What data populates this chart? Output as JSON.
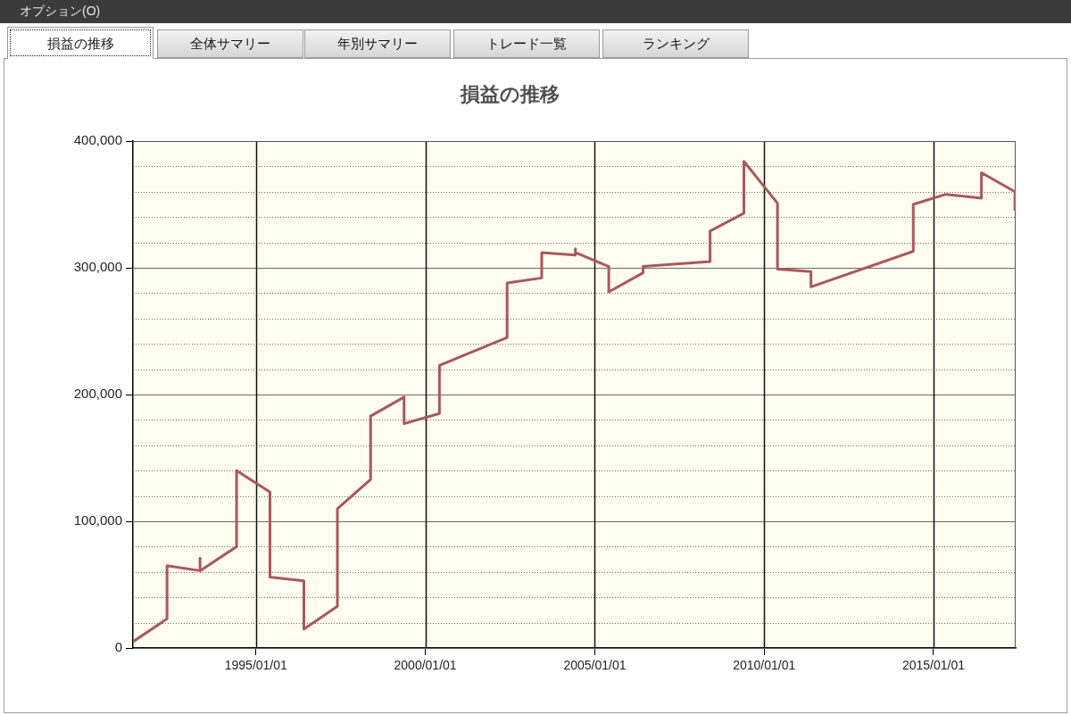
{
  "chart_data": {
    "type": "line",
    "title": "損益の推移",
    "annotations": [
      "オプション(O)",
      "損益の推移",
      "全体サマリー",
      "年別サマリー",
      "トレード一覧",
      "ランキング"
    ],
    "x": [
      "1991-05-16",
      "1992-05-17",
      "1992-05-17",
      "1993-05-08",
      "1993-05-08",
      "1993-05-08",
      "1994-06-06",
      "1994-06-06",
      "1995-06-01",
      "1995-06-01",
      "1996-06-01",
      "1996-06-01",
      "1997-05-28",
      "1997-05-28",
      "1998-05-21",
      "1998-05-21",
      "1999-05-17",
      "1999-05-17",
      "2000-06-01",
      "2000-06-01",
      "2002-06-01",
      "2002-06-01",
      "2003-06-09",
      "2003-06-09",
      "2004-06-06",
      "2004-06-06",
      "2004-06-06",
      "2005-06-01",
      "2005-06-01",
      "2006-06-06",
      "2006-06-06",
      "2008-05-28",
      "2008-05-28",
      "2009-05-28",
      "2009-05-28",
      "2010-05-25",
      "2010-05-25",
      "2011-05-21",
      "2011-05-21",
      "2014-05-28",
      "2014-05-28",
      "2015-05-14",
      "2016-06-01",
      "2016-06-01",
      "2017-05-28",
      "2017-05-28"
    ],
    "series": [
      {
        "color": "#a9585b",
        "values": [
          5000,
          23000,
          65000,
          61000,
          71000,
          61000,
          80000,
          140000,
          123000,
          56000,
          53000,
          15000,
          33000,
          110000,
          133000,
          183000,
          198000,
          177000,
          185000,
          223000,
          245000,
          288000,
          292000,
          312000,
          310000,
          315000,
          312000,
          301000,
          281000,
          296000,
          301000,
          305000,
          329000,
          343000,
          384000,
          351000,
          299000,
          297000,
          285000,
          313000,
          350000,
          358000,
          355000,
          375000,
          360000,
          346000
        ]
      }
    ],
    "xlim": [
      "1991-05-16",
      "2017-06-05"
    ],
    "xticks": [
      {
        "value": "1995-01-01",
        "label": "1995/01/01"
      },
      {
        "value": "2000-01-01",
        "label": "2000/01/01"
      },
      {
        "value": "2005-01-01",
        "label": "2005/01/01"
      },
      {
        "value": "2010-01-01",
        "label": "2010/01/01"
      },
      {
        "value": "2015-01-01",
        "label": "2015/01/01"
      }
    ],
    "ylim": [
      0,
      400000
    ],
    "yticks": [
      0,
      {
        "value": 20000,
        "label": null
      },
      {
        "value": 40000,
        "label": null
      },
      {
        "value": 60000,
        "label": null
      },
      {
        "value": 80000,
        "label": null
      },
      {
        "value": 100000,
        "label": "100,000"
      },
      {
        "value": 120000,
        "label": null
      },
      {
        "value": 140000,
        "label": null
      },
      {
        "value": 160000,
        "label": null
      },
      {
        "value": 180000,
        "label": null
      },
      {
        "value": 200000,
        "label": "200,000"
      },
      {
        "value": 220000,
        "label": null
      },
      {
        "value": 240000,
        "label": null
      },
      {
        "value": 260000,
        "label": null
      },
      {
        "value": 280000,
        "label": null
      },
      {
        "value": 300000,
        "label": "300,000"
      },
      {
        "value": 320000,
        "label": null
      },
      {
        "value": 340000,
        "label": null
      },
      {
        "value": 360000,
        "label": null
      },
      {
        "value": 380000,
        "label": null
      },
      {
        "value": 400000,
        "label": "400,000"
      }
    ],
    "grid": true
  }
}
